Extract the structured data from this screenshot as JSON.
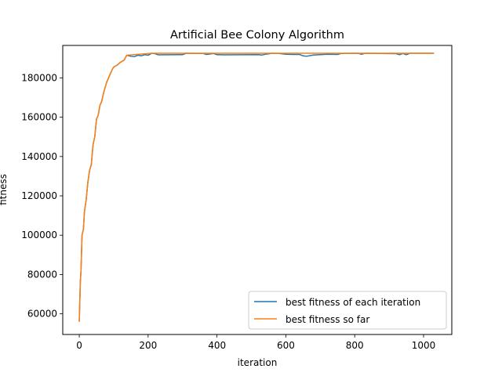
{
  "chart_data": {
    "type": "line",
    "title": "Artificial Bee Colony Algorithm",
    "xlabel": "iteration",
    "ylabel": "fitness",
    "xlim": [
      -48,
      1082
    ],
    "ylim": [
      49500,
      196500
    ],
    "xticks": [
      0,
      200,
      400,
      600,
      800,
      1000
    ],
    "yticks": [
      60000,
      80000,
      100000,
      120000,
      140000,
      160000,
      180000
    ],
    "legend_position": "lower-right",
    "grid": false,
    "series": [
      {
        "name": "best fitness of each iteration",
        "color": "#1f77b4",
        "points": [
          [
            0,
            56000
          ],
          [
            3,
            76000
          ],
          [
            5,
            82000
          ],
          [
            8,
            100000
          ],
          [
            12,
            103000
          ],
          [
            15,
            112000
          ],
          [
            20,
            118000
          ],
          [
            25,
            127000
          ],
          [
            30,
            133000
          ],
          [
            35,
            136000
          ],
          [
            40,
            146000
          ],
          [
            45,
            150000
          ],
          [
            50,
            159000
          ],
          [
            55,
            161000
          ],
          [
            60,
            166000
          ],
          [
            65,
            168000
          ],
          [
            70,
            172000
          ],
          [
            75,
            175000
          ],
          [
            80,
            178000
          ],
          [
            85,
            180000
          ],
          [
            90,
            182000
          ],
          [
            95,
            184000
          ],
          [
            100,
            185500
          ],
          [
            110,
            186500
          ],
          [
            120,
            188000
          ],
          [
            130,
            189000
          ],
          [
            138,
            191500
          ],
          [
            150,
            191000
          ],
          [
            160,
            190800
          ],
          [
            170,
            191500
          ],
          [
            180,
            191200
          ],
          [
            190,
            191800
          ],
          [
            200,
            191500
          ],
          [
            210,
            192500
          ],
          [
            220,
            192300
          ],
          [
            230,
            191700
          ],
          [
            300,
            191800
          ],
          [
            310,
            192500
          ],
          [
            360,
            192400
          ],
          [
            370,
            191900
          ],
          [
            390,
            192400
          ],
          [
            400,
            191800
          ],
          [
            420,
            191700
          ],
          [
            520,
            191800
          ],
          [
            530,
            191600
          ],
          [
            540,
            192000
          ],
          [
            550,
            192200
          ],
          [
            560,
            192500
          ],
          [
            580,
            192400
          ],
          [
            600,
            192000
          ],
          [
            620,
            191900
          ],
          [
            640,
            191900
          ],
          [
            650,
            191200
          ],
          [
            660,
            191000
          ],
          [
            680,
            191600
          ],
          [
            700,
            191800
          ],
          [
            720,
            192000
          ],
          [
            750,
            191900
          ],
          [
            760,
            192400
          ],
          [
            810,
            192500
          ],
          [
            820,
            192000
          ],
          [
            830,
            192500
          ],
          [
            920,
            192300
          ],
          [
            930,
            191800
          ],
          [
            940,
            192400
          ],
          [
            950,
            191800
          ],
          [
            960,
            192500
          ],
          [
            1030,
            192500
          ]
        ]
      },
      {
        "name": "best fitness so far",
        "color": "#ff7f0e",
        "points": [
          [
            0,
            56000
          ],
          [
            3,
            76000
          ],
          [
            5,
            82000
          ],
          [
            8,
            100000
          ],
          [
            12,
            103000
          ],
          [
            15,
            112000
          ],
          [
            20,
            118000
          ],
          [
            25,
            127000
          ],
          [
            30,
            133000
          ],
          [
            35,
            136000
          ],
          [
            40,
            146000
          ],
          [
            45,
            150000
          ],
          [
            50,
            159000
          ],
          [
            55,
            161000
          ],
          [
            60,
            166000
          ],
          [
            65,
            168000
          ],
          [
            70,
            172000
          ],
          [
            75,
            175000
          ],
          [
            80,
            178000
          ],
          [
            85,
            180000
          ],
          [
            90,
            182000
          ],
          [
            95,
            184000
          ],
          [
            100,
            185500
          ],
          [
            110,
            186500
          ],
          [
            120,
            188000
          ],
          [
            130,
            189000
          ],
          [
            138,
            191500
          ],
          [
            210,
            192500
          ],
          [
            1030,
            192500
          ]
        ]
      }
    ]
  }
}
